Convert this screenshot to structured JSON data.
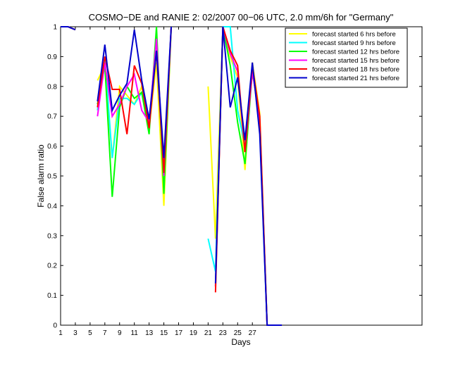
{
  "chart_data": {
    "type": "line",
    "title": "COSMO−DE and RANIE 2: 02/2007 00−06 UTC, 2.0 mm/6h for \"Germany\"",
    "xlabel": "Days",
    "ylabel": "False alarm ratio",
    "xlim": [
      1,
      50
    ],
    "ylim": [
      0,
      1
    ],
    "xticks": [
      1,
      3,
      5,
      7,
      9,
      11,
      13,
      15,
      17,
      19,
      21,
      23,
      25,
      27
    ],
    "yticks": [
      0,
      0.1,
      0.2,
      0.3,
      0.4,
      0.5,
      0.6,
      0.7,
      0.8,
      0.9,
      1
    ],
    "ytick_labels": [
      "0",
      "0.1",
      "0.2",
      "0.3",
      "0.4",
      "0.5",
      "0.6",
      "0.7",
      "0.8",
      "0.9",
      "1"
    ],
    "grid": false,
    "legend_position": "top-right",
    "series": [
      {
        "name": "forecast started 6 hrs before",
        "color": "#ffff00",
        "values": [
          1,
          1,
          0.99,
          null,
          null,
          0.82,
          0.87,
          0.56,
          0.8,
          0.77,
          0.74,
          0.8,
          0.66,
          0.88,
          0.4,
          1,
          null,
          null,
          null,
          null,
          0.8,
          0.29,
          1,
          0.9,
          0.83,
          0.52,
          0.88,
          0.71,
          0,
          0,
          0
        ]
      },
      {
        "name": "forecast started 9 hrs before",
        "color": "#00ffff",
        "values": [
          1,
          1,
          0.99,
          null,
          null,
          0.72,
          0.9,
          0.56,
          0.76,
          0.76,
          0.74,
          0.78,
          0.67,
          0.92,
          0.5,
          1,
          null,
          null,
          null,
          null,
          0.29,
          0.18,
          1,
          1,
          0.72,
          0.6,
          0.87,
          0.66,
          0,
          0,
          0
        ]
      },
      {
        "name": "forecast started 12 hrs before",
        "color": "#00ff00",
        "values": [
          1,
          1,
          0.99,
          null,
          null,
          0.74,
          0.87,
          0.43,
          0.73,
          0.8,
          0.76,
          0.78,
          0.64,
          1,
          0.44,
          1,
          null,
          null,
          null,
          null,
          null,
          0.13,
          1,
          0.87,
          0.68,
          0.54,
          0.85,
          0.69,
          0,
          0,
          0
        ]
      },
      {
        "name": "forecast started 15 hrs before",
        "color": "#ff00ff",
        "values": [
          1,
          1,
          0.99,
          null,
          null,
          0.7,
          0.88,
          0.7,
          0.74,
          0.8,
          0.84,
          0.72,
          0.68,
          0.96,
          0.5,
          1,
          null,
          null,
          null,
          null,
          null,
          0.13,
          1,
          0.91,
          0.85,
          0.58,
          0.85,
          0.69,
          0,
          0,
          0
        ]
      },
      {
        "name": "forecast started 18 hrs before",
        "color": "#ff0000",
        "values": [
          1,
          1,
          0.99,
          null,
          null,
          0.73,
          0.9,
          0.79,
          0.79,
          0.64,
          0.87,
          0.81,
          0.66,
          0.92,
          0.51,
          1,
          null,
          null,
          null,
          null,
          null,
          0.11,
          1,
          0.92,
          0.87,
          0.58,
          0.87,
          0.7,
          0,
          0,
          0
        ]
      },
      {
        "name": "forecast started 21 hrs before",
        "color": "#0000cc",
        "values": [
          1,
          1,
          0.99,
          null,
          null,
          0.75,
          0.94,
          0.72,
          0.77,
          0.81,
          0.99,
          0.82,
          0.69,
          0.92,
          0.56,
          1,
          null,
          null,
          null,
          null,
          null,
          0.14,
          1,
          0.73,
          0.83,
          0.62,
          0.88,
          0.64,
          0,
          0,
          0
        ]
      }
    ]
  }
}
